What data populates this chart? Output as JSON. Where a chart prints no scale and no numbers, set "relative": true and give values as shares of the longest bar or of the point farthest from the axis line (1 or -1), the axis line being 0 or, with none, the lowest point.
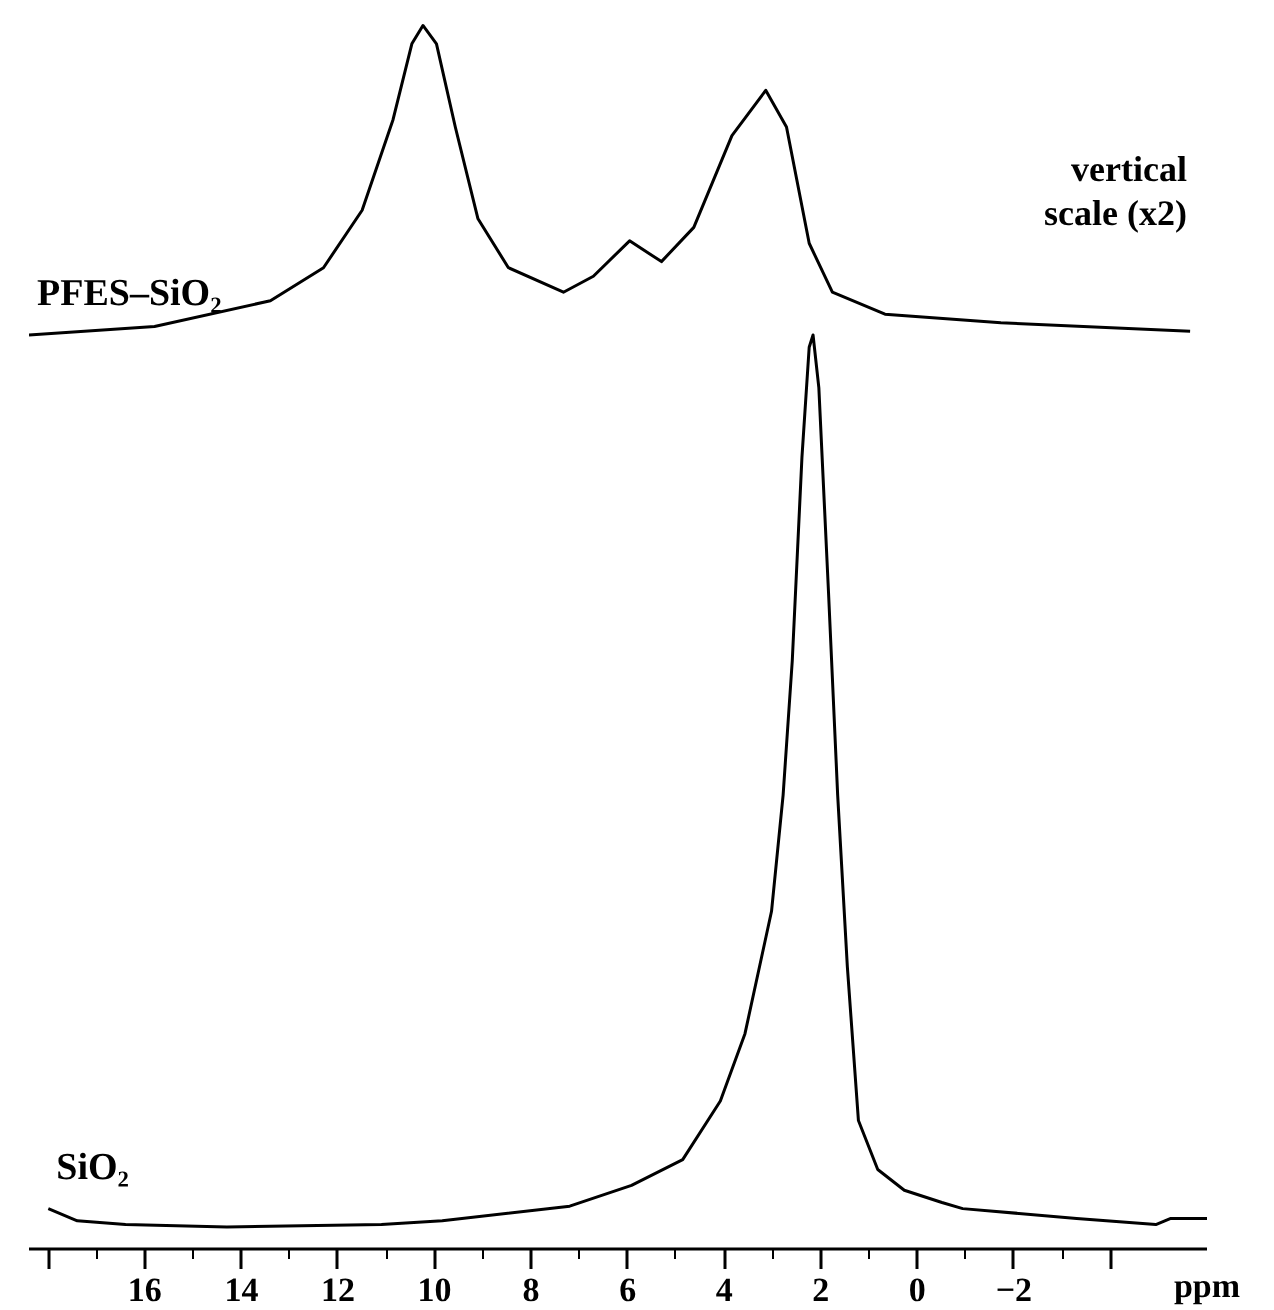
{
  "chart_data": {
    "type": "line",
    "relative": true,
    "xlabel": "ppm",
    "xlim": [
      18.4,
      -6.0
    ],
    "xticks": [
      {
        "value": 18,
        "label": null
      },
      16,
      14,
      12,
      10,
      8,
      6,
      4,
      2,
      0,
      -2,
      {
        "value": -4,
        "label": null
      }
    ],
    "grid": false,
    "marker": "none",
    "line_style": "solid",
    "annotations": [
      "vertical scale (x2)"
    ],
    "series": [
      {
        "name": "PFES–SiO₂",
        "color": "#000000",
        "x": [
          18.4,
          15.8,
          13.4,
          12.3,
          11.5,
          10.86,
          10.47,
          10.24,
          9.96,
          9.57,
          9.1,
          8.47,
          7.33,
          6.71,
          5.96,
          5.3,
          4.63,
          3.84,
          3.14,
          2.71,
          2.24,
          1.76,
          0.67,
          -1.73,
          -5.65
        ],
        "values": [
          0.747,
          0.754,
          0.775,
          0.802,
          0.849,
          0.923,
          0.985,
          1.0,
          0.985,
          0.917,
          0.842,
          0.802,
          0.782,
          0.795,
          0.824,
          0.807,
          0.835,
          0.91,
          0.947,
          0.917,
          0.822,
          0.782,
          0.764,
          0.757,
          0.75
        ]
      },
      {
        "name": "SiO₂",
        "color": "#000000",
        "x": [
          18.0,
          17.4,
          16.4,
          14.3,
          11.1,
          9.84,
          7.2,
          5.92,
          4.86,
          4.08,
          3.57,
          3.02,
          2.78,
          2.59,
          2.39,
          2.24,
          2.16,
          2.04,
          1.84,
          1.65,
          1.45,
          1.22,
          0.82,
          0.27,
          -0.51,
          -0.94,
          -3.3,
          -4.94,
          -5.25,
          -6.0
        ],
        "values": [
          0.033,
          0.023,
          0.02,
          0.018,
          0.02,
          0.023,
          0.035,
          0.052,
          0.073,
          0.121,
          0.176,
          0.276,
          0.371,
          0.481,
          0.647,
          0.737,
          0.747,
          0.704,
          0.537,
          0.371,
          0.231,
          0.105,
          0.065,
          0.048,
          0.038,
          0.033,
          0.025,
          0.02,
          0.025,
          0.025
        ]
      }
    ]
  }
}
